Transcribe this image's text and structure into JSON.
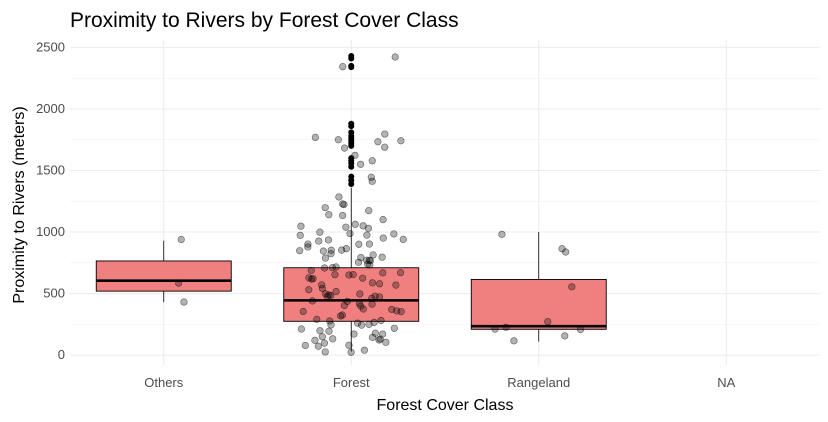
{
  "chart_data": {
    "type": "boxplot",
    "title": "Proximity to Rivers by Forest Cover Class",
    "xlabel": "Forest Cover Class",
    "ylabel": "Proximity to Rivers (meters)",
    "categories": [
      "Others",
      "Forest",
      "Rangeland",
      "NA"
    ],
    "ylim": [
      -80,
      2560
    ],
    "yticks": [
      0,
      500,
      1000,
      1500,
      2000,
      2500
    ],
    "grid": true,
    "legend": "none",
    "box_color": "#f08080",
    "point_color": "#000000",
    "boxes": [
      {
        "category": "Others",
        "q1": 520,
        "median": 605,
        "q3": 765,
        "whisker_low": 430,
        "whisker_high": 930
      },
      {
        "category": "Forest",
        "q1": 275,
        "median": 445,
        "q3": 710,
        "whisker_low": 30,
        "whisker_high": 1360
      },
      {
        "category": "Rangeland",
        "q1": 210,
        "median": 235,
        "q3": 615,
        "whisker_low": 110,
        "whisker_high": 1000
      }
    ],
    "outliers": [
      {
        "category": "Forest",
        "values": [
          2430,
          2410,
          2350,
          2340,
          1880,
          1860,
          1810,
          1780,
          1760,
          1740,
          1720,
          1700,
          1600,
          1580,
          1560,
          1530,
          1450,
          1420,
          1390
        ]
      }
    ],
    "jitter_points": [
      {
        "category": "Others",
        "values": [
          930,
          610,
          440
        ]
      },
      {
        "category": "Rangeland",
        "values": [
          1000,
          880,
          830,
          540,
          260,
          240,
          225,
          210,
          150,
          110
        ]
      },
      {
        "category": "Forest",
        "values": [
          2440,
          2340,
          1780,
          1760,
          1750,
          1740,
          1720,
          1700,
          1680,
          1640,
          1560,
          1530,
          1440,
          1400,
          1280,
          1250,
          1200,
          1180,
          1150,
          1130,
          1120,
          1100,
          1080,
          1060,
          1050,
          1040,
          1020,
          1010,
          1000,
          990,
          980,
          970,
          960,
          950,
          940,
          930,
          920,
          910,
          900,
          890,
          880,
          870,
          860,
          850,
          840,
          830,
          820,
          810,
          800,
          790,
          780,
          770,
          760,
          750,
          740,
          730,
          720,
          710,
          700,
          690,
          680,
          670,
          660,
          650,
          640,
          630,
          620,
          610,
          600,
          590,
          580,
          570,
          560,
          550,
          540,
          530,
          520,
          510,
          500,
          490,
          480,
          470,
          460,
          450,
          440,
          430,
          420,
          410,
          400,
          390,
          380,
          370,
          360,
          350,
          340,
          330,
          320,
          310,
          300,
          290,
          280,
          270,
          260,
          250,
          240,
          230,
          220,
          210,
          200,
          190,
          180,
          170,
          160,
          150,
          140,
          130,
          120,
          110,
          100,
          90,
          80,
          70,
          60,
          50,
          40,
          30
        ]
      }
    ]
  }
}
